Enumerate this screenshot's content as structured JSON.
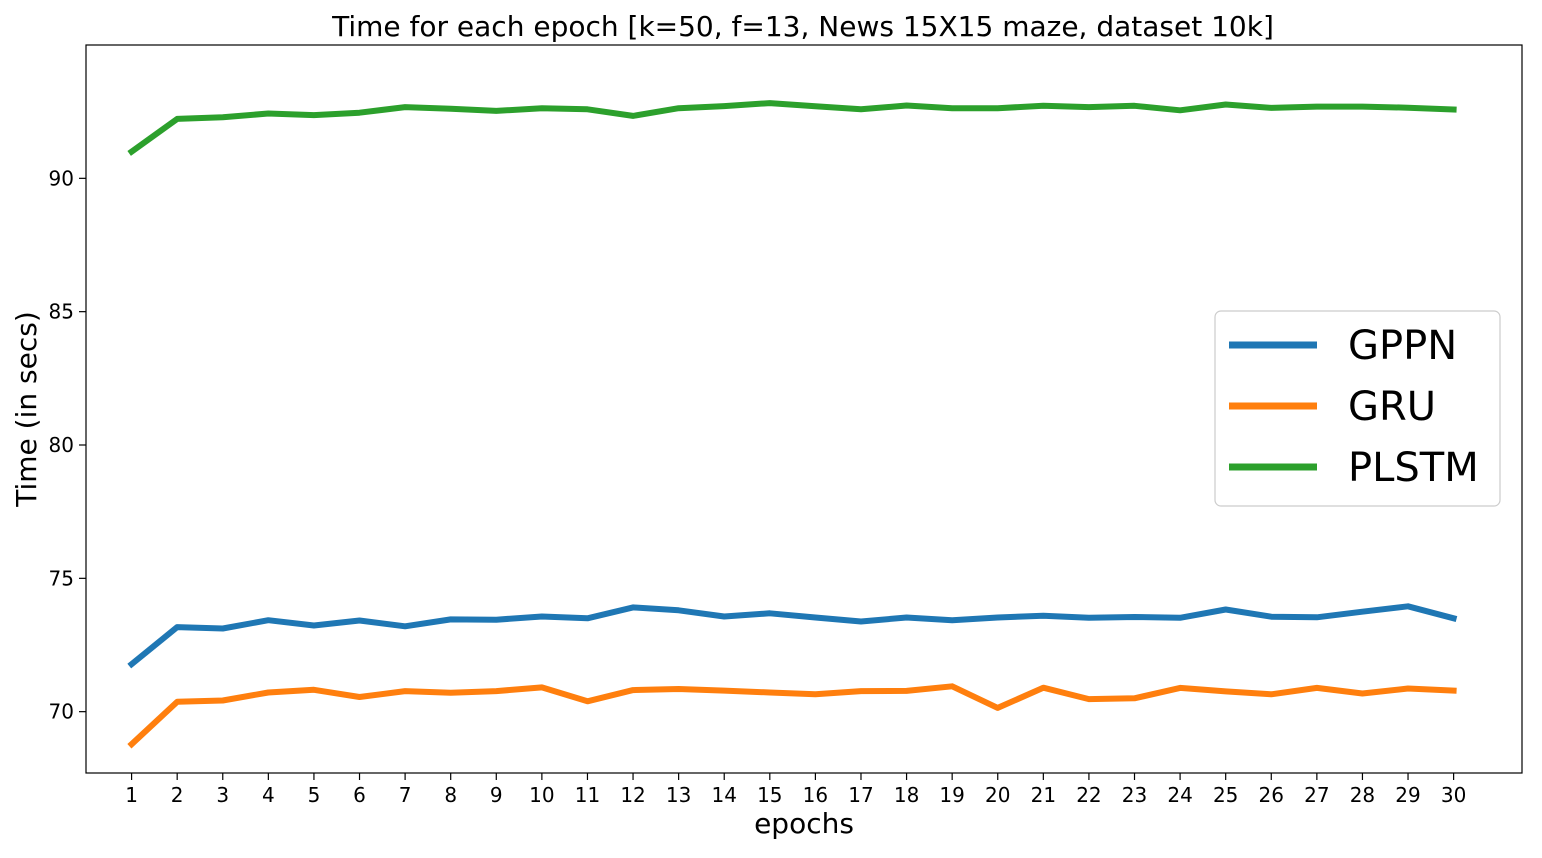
{
  "chart_data": {
    "type": "line",
    "title": "Time for each epoch [k=50, f=13, News 15X15 maze, dataset 10k]",
    "xlabel": "epochs",
    "ylabel": "Time (in secs)",
    "x": [
      1,
      2,
      3,
      4,
      5,
      6,
      7,
      8,
      9,
      10,
      11,
      12,
      13,
      14,
      15,
      16,
      17,
      18,
      19,
      20,
      21,
      22,
      23,
      24,
      25,
      26,
      27,
      28,
      29,
      30
    ],
    "xlim": [
      0,
      31.5
    ],
    "ylim": [
      67.7,
      95.0
    ],
    "yticks": [
      70,
      75,
      80,
      85,
      90
    ],
    "grid": false,
    "legend_position": "center-right",
    "series": [
      {
        "name": "GPPN",
        "color": "#1f77b4",
        "values": [
          71.78,
          73.17,
          73.12,
          73.43,
          73.23,
          73.42,
          73.2,
          73.46,
          73.45,
          73.57,
          73.5,
          73.91,
          73.8,
          73.57,
          73.69,
          73.53,
          73.38,
          73.53,
          73.43,
          73.53,
          73.6,
          73.52,
          73.55,
          73.52,
          73.83,
          73.56,
          73.54,
          73.75,
          73.95,
          73.5
        ]
      },
      {
        "name": "GRU",
        "color": "#ff7f0e",
        "values": [
          68.78,
          70.37,
          70.42,
          70.72,
          70.82,
          70.55,
          70.77,
          70.71,
          70.77,
          70.91,
          70.39,
          70.81,
          70.85,
          70.79,
          70.72,
          70.65,
          70.77,
          70.78,
          70.95,
          70.14,
          70.9,
          70.47,
          70.5,
          70.89,
          70.76,
          70.65,
          70.89,
          70.68,
          70.87,
          70.79
        ]
      },
      {
        "name": "PLSTM",
        "color": "#2ca02c",
        "values": [
          91.0,
          92.23,
          92.29,
          92.43,
          92.37,
          92.46,
          92.67,
          92.61,
          92.53,
          92.63,
          92.59,
          92.34,
          92.63,
          92.71,
          92.82,
          92.7,
          92.59,
          92.73,
          92.63,
          92.63,
          92.72,
          92.67,
          92.72,
          92.55,
          92.77,
          92.64,
          92.69,
          92.69,
          92.65,
          92.58
        ]
      }
    ]
  }
}
